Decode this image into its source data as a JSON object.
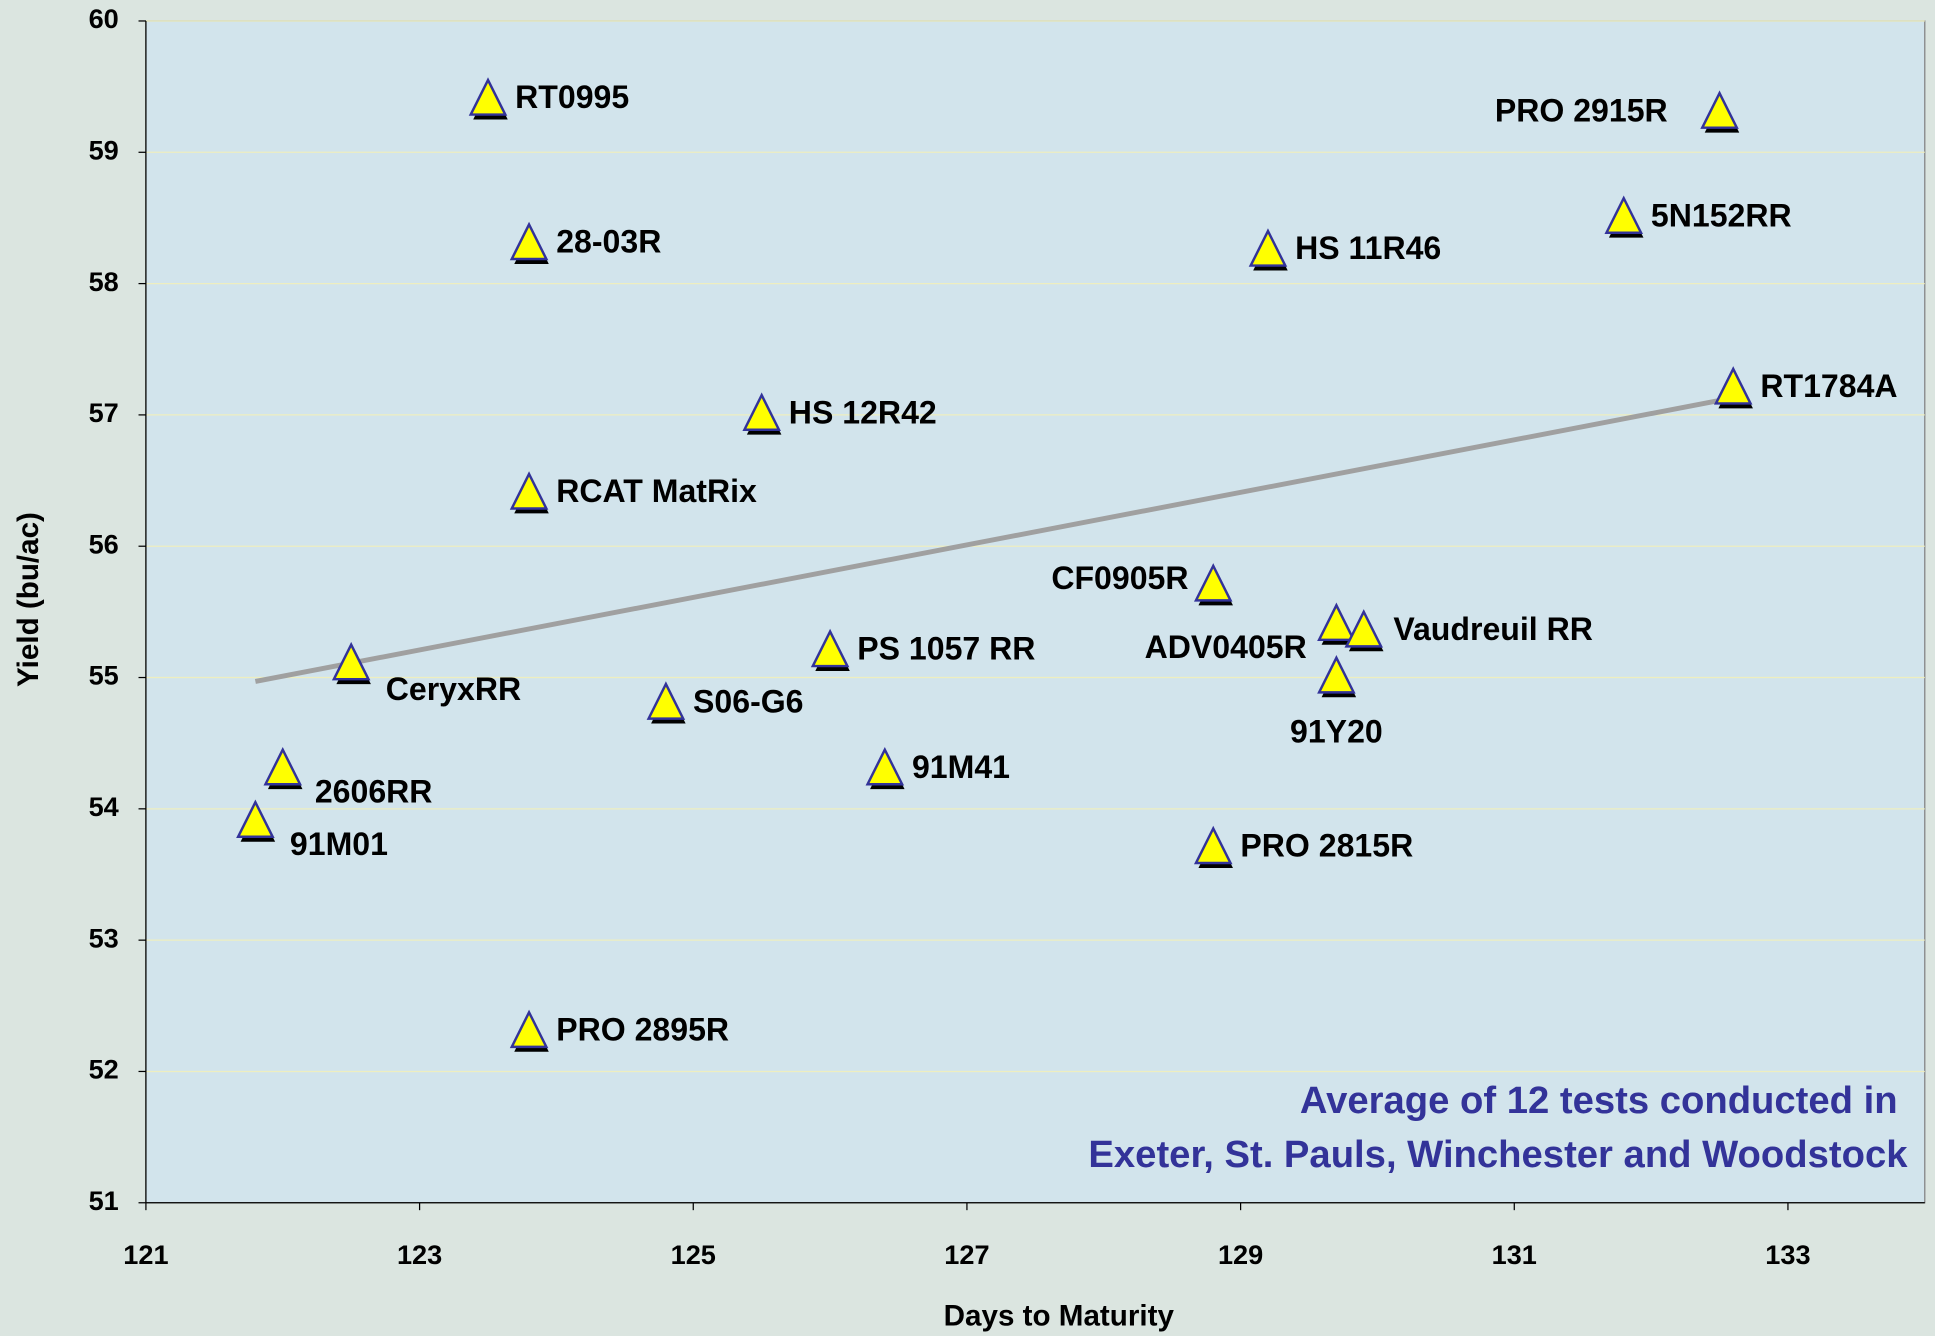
{
  "chart_data": {
    "type": "scatter",
    "x_label": "Days to Maturity",
    "y_label": "Yield (bu/ac)",
    "annotation": [
      "Average of 12 tests conducted in",
      "Exeter, St. Pauls, Winchester and Woodstock"
    ],
    "xlim": [
      121,
      134
    ],
    "xticks": [
      121,
      123,
      125,
      127,
      129,
      131,
      133
    ],
    "ylim": [
      51,
      60
    ],
    "yticks": [
      51,
      52,
      53,
      54,
      55,
      56,
      57,
      58,
      59,
      60
    ],
    "grid": true,
    "series": [
      {
        "color": "#ffff00",
        "labels": [
          "RT0995",
          "28-03R",
          "HS 12R42",
          "RCAT MatRix",
          "CeryxRR",
          "S06-G6",
          "2606RR",
          "91M01",
          "PRO 2895R",
          "PS 1057 RR",
          "91M41",
          "CF0905R",
          "ADV0405R",
          "Vaudreuil RR",
          "91Y20",
          "PRO 2815R",
          "HS 11R46",
          "PRO 2915R",
          "5N152RR",
          "RT1784A"
        ],
        "x": [
          123.5,
          123.8,
          125.5,
          123.8,
          122.5,
          124.8,
          122.0,
          121.8,
          123.8,
          126.0,
          126.4,
          128.8,
          129.7,
          129.9,
          129.7,
          128.8,
          129.2,
          132.5,
          131.8,
          132.6
        ],
        "values": [
          59.4,
          58.3,
          57.0,
          56.4,
          55.1,
          54.8,
          54.3,
          53.9,
          52.3,
          55.2,
          54.3,
          55.7,
          55.4,
          55.35,
          55.0,
          53.7,
          58.25,
          59.3,
          58.5,
          57.2
        ]
      }
    ],
    "trendline": {
      "color": "#a0a0a0",
      "x": [
        121.8,
        132.6
      ],
      "values": [
        54.97,
        57.13
      ]
    }
  }
}
